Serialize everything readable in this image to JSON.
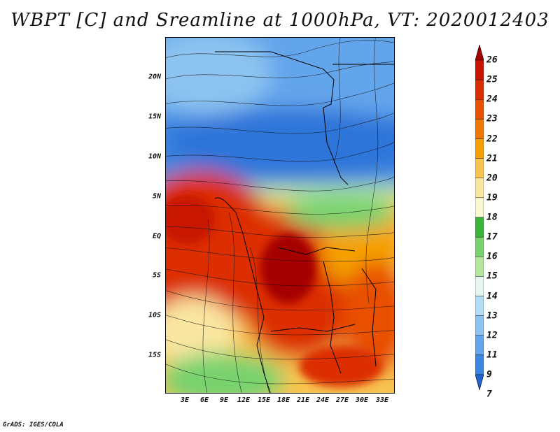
{
  "title": "WBPT [C] and Sreamline at 1000hPa, VT: 2020012403",
  "credit": "GrADS: IGES/COLA",
  "map": {
    "lat_labels": [
      "20N",
      "15N",
      "10N",
      "5N",
      "EQ",
      "5S",
      "10S",
      "15S"
    ],
    "lon_labels": [
      "3E",
      "6E",
      "9E",
      "12E",
      "15E",
      "18E",
      "21E",
      "24E",
      "27E",
      "30E",
      "33E"
    ]
  },
  "colorbar": {
    "levels": [
      "26",
      "25",
      "24",
      "23",
      "22",
      "21",
      "20",
      "19",
      "18",
      "17",
      "16",
      "15",
      "14",
      "13",
      "12",
      "11",
      "9",
      "7"
    ],
    "colors": [
      "#a50000",
      "#c81400",
      "#dc2d00",
      "#e85000",
      "#f07800",
      "#f5a000",
      "#f8c450",
      "#fae6a0",
      "#fafad2",
      "#3cb43c",
      "#78d26e",
      "#b4e6a0",
      "#e6f5f0",
      "#b4dcf5",
      "#8cc3f0",
      "#64a5eb",
      "#3c87e1",
      "#1e64d2"
    ]
  }
}
